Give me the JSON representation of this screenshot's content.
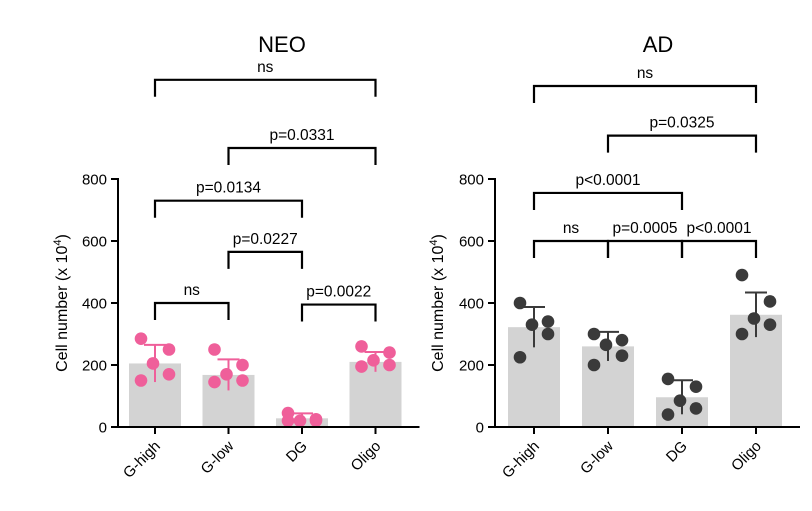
{
  "chart_data": [
    {
      "type": "bar",
      "title": "NEO",
      "ylabel": "Cell number (x 10",
      "ylabel_exp": "4",
      "ylabel_close": ")",
      "ylim": [
        0,
        800
      ],
      "yticks": [
        0,
        200,
        400,
        600,
        800
      ],
      "ytick_labels": [
        "0",
        "200",
        "400",
        "600",
        "800"
      ],
      "categories": [
        "G-high",
        "G-low",
        "DG",
        "Oligo"
      ],
      "values": [
        205,
        168,
        28,
        210
      ],
      "errors": [
        60,
        50,
        16,
        32
      ],
      "point_color": "#ef5f9a",
      "bar_color": "#d3d3d3",
      "points": [
        [
          285,
          250,
          205,
          170,
          150
        ],
        [
          250,
          200,
          170,
          150,
          145
        ],
        [
          45,
          25,
          20,
          20,
          20
        ],
        [
          260,
          240,
          215,
          200,
          195
        ]
      ],
      "comparisons": [
        {
          "from": 0,
          "to": 3,
          "label": "ns",
          "level": 1120
        },
        {
          "from": 1,
          "to": 3,
          "label": "p=0.0331",
          "level": 900
        },
        {
          "from": 0,
          "to": 2,
          "label": "p=0.0134",
          "level": 730
        },
        {
          "from": 1,
          "to": 2,
          "label": "p=0.0227",
          "level": 565
        },
        {
          "from": 0,
          "to": 1,
          "label": "ns",
          "level": 400
        },
        {
          "from": 2,
          "to": 3,
          "label": "p=0.0022",
          "level": 395
        }
      ]
    },
    {
      "type": "bar",
      "title": "AD",
      "ylabel": "Cell number (x 10",
      "ylabel_exp": "4",
      "ylabel_close": ")",
      "ylim": [
        0,
        800
      ],
      "yticks": [
        0,
        200,
        400,
        600,
        800
      ],
      "ytick_labels": [
        "0",
        "200",
        "400",
        "600",
        "800"
      ],
      "categories": [
        "G-high",
        "G-low",
        "DG",
        "Oligo"
      ],
      "values": [
        322,
        260,
        96,
        362
      ],
      "errors": [
        65,
        47,
        55,
        72
      ],
      "point_color": "#3a3a3a",
      "bar_color": "#d3d3d3",
      "points": [
        [
          400,
          340,
          330,
          300,
          225
        ],
        [
          300,
          280,
          265,
          230,
          200
        ],
        [
          155,
          130,
          85,
          60,
          40
        ],
        [
          490,
          405,
          350,
          330,
          300
        ]
      ],
      "comparisons": [
        {
          "from": 0,
          "to": 3,
          "label": "ns",
          "level": 1100
        },
        {
          "from": 1,
          "to": 3,
          "label": "p=0.0325",
          "level": 940
        },
        {
          "from": 0,
          "to": 2,
          "label": "p<0.0001",
          "level": 755
        },
        {
          "from": 0,
          "to": 1,
          "label": "ns",
          "level": 600
        },
        {
          "from": 1,
          "to": 2,
          "label": "p=0.0005",
          "level": 600
        },
        {
          "from": 2,
          "to": 3,
          "label": "p<0.0001",
          "level": 600
        }
      ]
    }
  ]
}
